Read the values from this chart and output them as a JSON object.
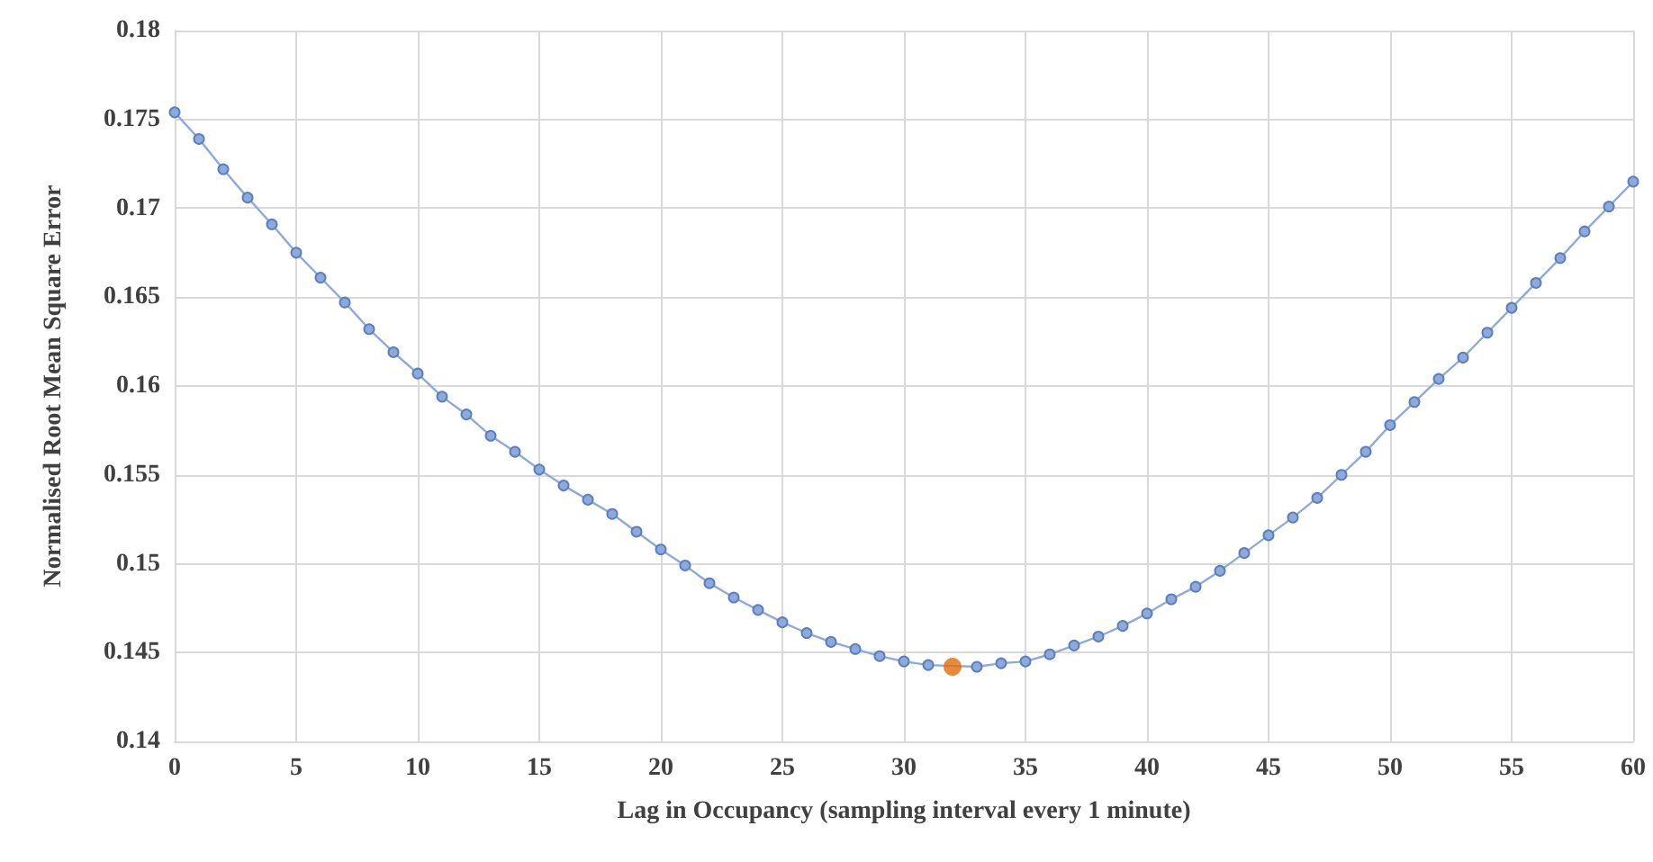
{
  "chart_data": {
    "type": "line",
    "xlabel": "Lag in Occupancy (sampling interval every 1 minute)",
    "ylabel": "Normalised Root Mean Square Error",
    "x": [
      0,
      1,
      2,
      3,
      4,
      5,
      6,
      7,
      8,
      9,
      10,
      11,
      12,
      13,
      14,
      15,
      16,
      17,
      18,
      19,
      20,
      21,
      22,
      23,
      24,
      25,
      26,
      27,
      28,
      29,
      30,
      31,
      32,
      33,
      34,
      35,
      36,
      37,
      38,
      39,
      40,
      41,
      42,
      43,
      44,
      45,
      46,
      47,
      48,
      49,
      50,
      51,
      52,
      53,
      54,
      55,
      56,
      57,
      58,
      59,
      60
    ],
    "series": [
      {
        "color": "#8eaadb",
        "values": [
          0.1754,
          0.1739,
          0.1722,
          0.1706,
          0.1691,
          0.1675,
          0.1661,
          0.1647,
          0.1632,
          0.1619,
          0.1607,
          0.1594,
          0.1584,
          0.1572,
          0.1563,
          0.1553,
          0.1544,
          0.1536,
          0.1528,
          0.1518,
          0.1508,
          0.1499,
          0.1489,
          0.1481,
          0.1474,
          0.1467,
          0.1461,
          0.1456,
          0.1452,
          0.1448,
          0.1445,
          0.1443,
          null,
          0.1442,
          0.1444,
          0.1445,
          0.1449,
          0.1454,
          0.1459,
          0.1465,
          0.1472,
          0.148,
          0.1487,
          0.1496,
          0.1506,
          0.1516,
          0.1526,
          0.1537,
          0.155,
          0.1563,
          0.1578,
          0.1591,
          0.1604,
          0.1616,
          0.163,
          0.1644,
          0.1658,
          0.1672,
          0.1687,
          0.1701,
          0.1715
        ]
      },
      {
        "type": "scatter",
        "color": "#e46c0a",
        "x": [
          32
        ],
        "values": [
          0.1442
        ]
      }
    ],
    "xlim": [
      0,
      60
    ],
    "xticks": [
      0,
      5,
      10,
      15,
      20,
      25,
      30,
      35,
      40,
      45,
      50,
      55,
      60
    ],
    "ylim": [
      0.14,
      0.18
    ],
    "yticks": [
      0.14,
      0.145,
      0.15,
      0.155,
      0.16,
      0.165,
      0.17,
      0.175,
      0.18
    ],
    "grid": true,
    "marker": "circle",
    "line_style": "solid"
  }
}
